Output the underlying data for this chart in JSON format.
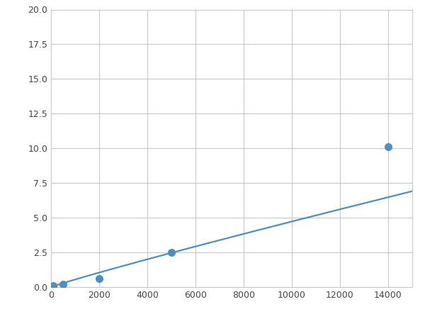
{
  "x_points": [
    100,
    500,
    2000,
    5000,
    14000
  ],
  "y_points": [
    0.1,
    0.2,
    0.6,
    2.5,
    10.1
  ],
  "line_color": "#4f8fbf",
  "marker_color": "#4f8fbf",
  "marker_size": 7,
  "linewidth": 1.6,
  "xlim": [
    0,
    15000
  ],
  "ylim": [
    0,
    20
  ],
  "xticks": [
    0,
    2000,
    4000,
    6000,
    8000,
    10000,
    12000,
    14000
  ],
  "yticks": [
    0.0,
    2.5,
    5.0,
    7.5,
    10.0,
    12.5,
    15.0,
    17.5,
    20.0
  ],
  "grid_color": "#c8c8c8",
  "background_color": "#ffffff",
  "figure_background": "#ffffff"
}
